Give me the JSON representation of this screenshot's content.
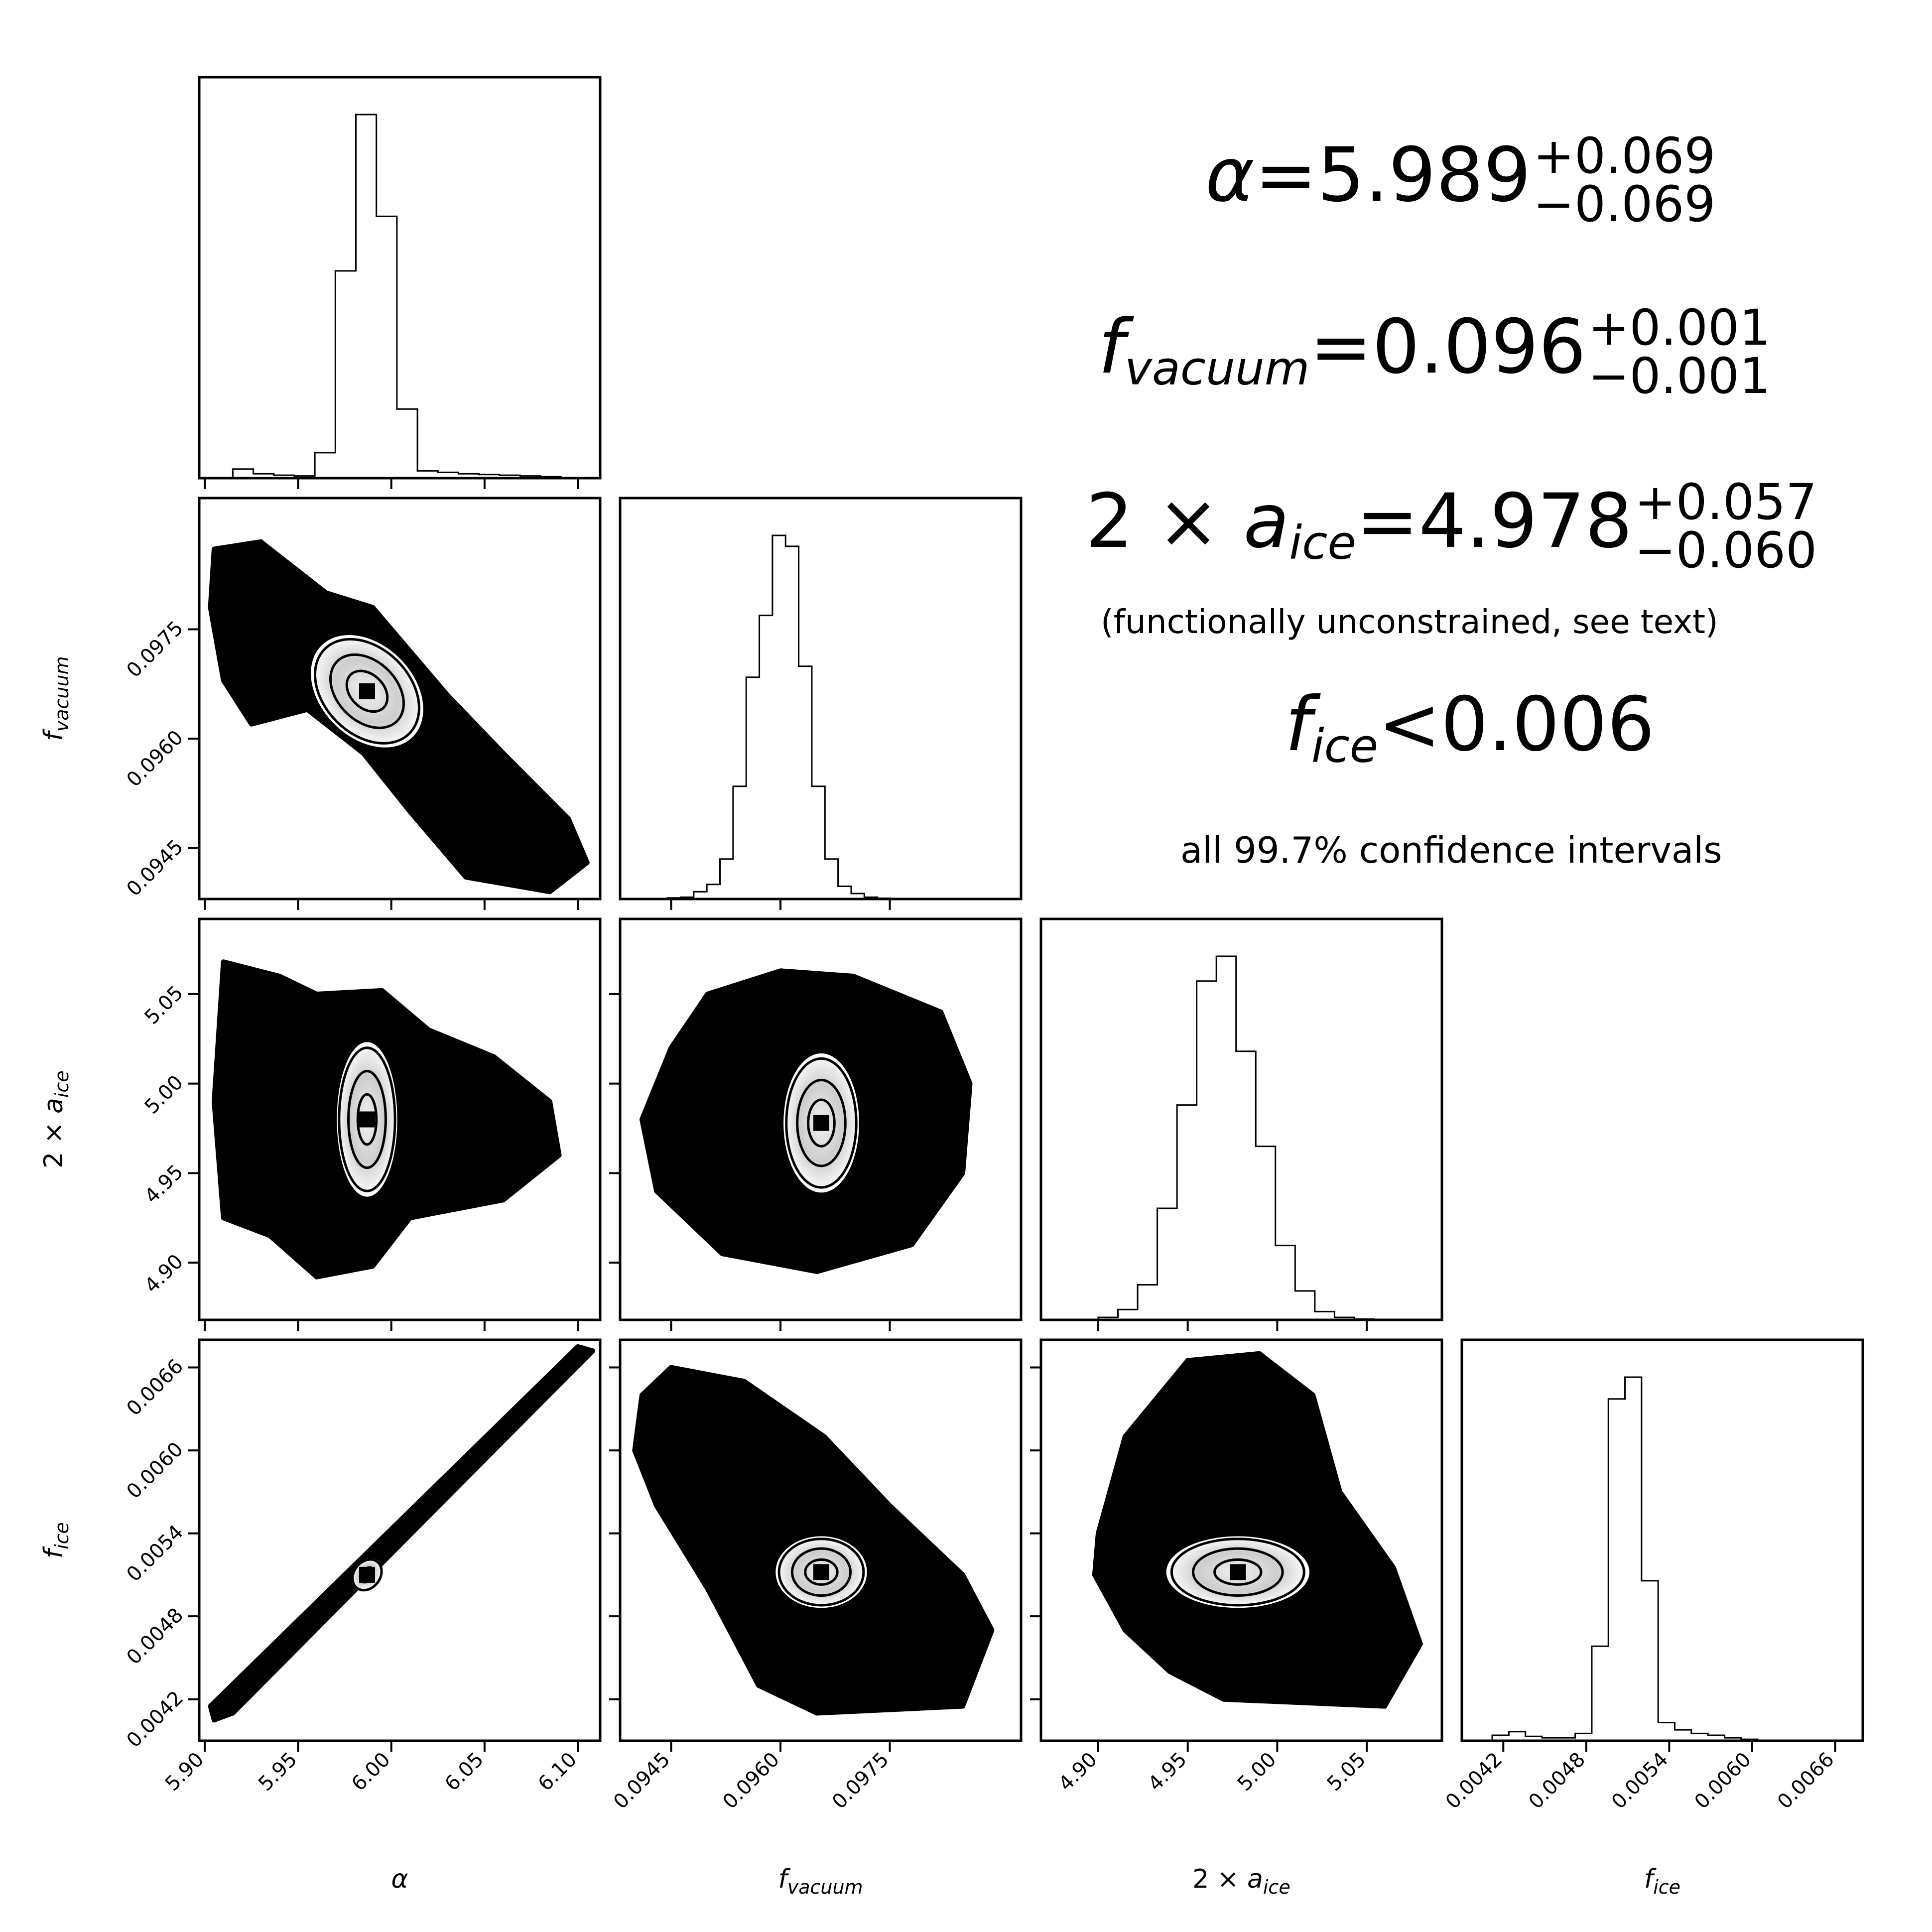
{
  "summary": {
    "alpha": {
      "name": "α",
      "value": "5.989",
      "plus": "+0.069",
      "minus": "−0.069"
    },
    "f_vacuum": {
      "name": "f",
      "sub": "vacuum",
      "value": "0.096",
      "plus": "+0.001",
      "minus": "−0.001"
    },
    "a_ice": {
      "prefix": "2 × ",
      "name": "a",
      "sub": "ice",
      "value": "4.978",
      "plus": "+0.057",
      "minus": "−0.060"
    },
    "a_ice_note": "(functionally unconstrained, see text)",
    "f_ice": {
      "name": "f",
      "sub": "ice",
      "text": "<0.006"
    },
    "footer": "all 99.7% confidence intervals"
  },
  "colors": {
    "ink": "#000000",
    "background": "#ffffff"
  },
  "chart_data": {
    "type": "corner",
    "parameters": [
      {
        "key": "alpha",
        "label": "α",
        "range": [
          5.897,
          6.112
        ],
        "ticks": [
          5.9,
          5.95,
          6.0,
          6.05,
          6.1
        ],
        "tick_labels": [
          "5.90",
          "5.95",
          "6.00",
          "6.05",
          "6.10"
        ]
      },
      {
        "key": "f_vacuum",
        "label": "f",
        "label_sub": "vacuum",
        "range": [
          0.0938,
          0.0993
        ],
        "ticks": [
          0.0945,
          0.096,
          0.0975
        ],
        "tick_labels": [
          "0.0945",
          "0.0960",
          "0.0975"
        ]
      },
      {
        "key": "a_ice",
        "label": "2 × a",
        "label_sub": "ice",
        "range": [
          4.868,
          5.092
        ],
        "ticks": [
          4.9,
          4.95,
          5.0,
          5.05
        ],
        "tick_labels": [
          "4.90",
          "4.95",
          "5.00",
          "5.05"
        ]
      },
      {
        "key": "f_ice",
        "label": "f",
        "label_sub": "ice",
        "range": [
          0.0039,
          0.0068
        ],
        "ticks": [
          0.0042,
          0.0048,
          0.0054,
          0.006,
          0.0066
        ],
        "tick_labels": [
          "0.0042",
          "0.0048",
          "0.0054",
          "0.0060",
          "0.0066"
        ]
      }
    ],
    "histograms": [
      {
        "param": "alpha",
        "edges": [
          5.915,
          5.926,
          5.937,
          5.948,
          5.959,
          5.97,
          5.981,
          5.992,
          6.003,
          6.014,
          6.025,
          6.036,
          6.047,
          6.058,
          6.069,
          6.08,
          6.091
        ],
        "counts": [
          0.025,
          0.012,
          0.008,
          0.006,
          0.07,
          0.57,
          1.0,
          0.72,
          0.19,
          0.02,
          0.016,
          0.012,
          0.01,
          0.008,
          0.006,
          0.004
        ]
      },
      {
        "param": "f_vacuum",
        "edges": [
          0.09445,
          0.09463,
          0.09481,
          0.09499,
          0.09517,
          0.09535,
          0.09553,
          0.09571,
          0.09589,
          0.09607,
          0.09625,
          0.09643,
          0.09661,
          0.09679,
          0.09697,
          0.09715,
          0.09733,
          0.09751,
          0.09769,
          0.09787,
          0.09805
        ],
        "counts": [
          0.003,
          0.005,
          0.02,
          0.04,
          0.11,
          0.31,
          0.61,
          0.78,
          1.0,
          0.97,
          0.64,
          0.31,
          0.11,
          0.035,
          0.015,
          0.005,
          0.002,
          0.001,
          0.001,
          0.001
        ]
      },
      {
        "param": "a_ice",
        "edges": [
          4.9,
          4.911,
          4.922,
          4.933,
          4.944,
          4.955,
          4.966,
          4.977,
          4.988,
          4.999,
          5.01,
          5.021,
          5.032,
          5.043,
          5.054
        ],
        "counts": [
          0.006,
          0.025,
          0.085,
          0.27,
          0.52,
          0.82,
          0.88,
          0.65,
          0.42,
          0.18,
          0.07,
          0.02,
          0.006,
          0.002
        ]
      },
      {
        "param": "f_ice",
        "edges": [
          0.00412,
          0.00424,
          0.00436,
          0.00448,
          0.0046,
          0.00472,
          0.00484,
          0.00496,
          0.00508,
          0.0052,
          0.00532,
          0.00544,
          0.00556,
          0.00568,
          0.0058,
          0.00592,
          0.00604
        ],
        "counts": [
          0.015,
          0.025,
          0.012,
          0.008,
          0.008,
          0.02,
          0.26,
          0.94,
          1.0,
          0.44,
          0.05,
          0.03,
          0.02,
          0.015,
          0.008,
          0.004
        ]
      }
    ],
    "pair_clouds": [
      {
        "x": "alpha",
        "y": "f_vacuum",
        "outline": [
          [
            5.905,
            0.0986
          ],
          [
            5.93,
            0.0987
          ],
          [
            5.965,
            0.098
          ],
          [
            5.99,
            0.0978
          ],
          [
            6.01,
            0.0972
          ],
          [
            6.03,
            0.0966
          ],
          [
            6.06,
            0.0958
          ],
          [
            6.095,
            0.0949
          ],
          [
            6.105,
            0.0943
          ],
          [
            6.085,
            0.0939
          ],
          [
            6.04,
            0.0941
          ],
          [
            6.01,
            0.095
          ],
          [
            5.985,
            0.0958
          ],
          [
            5.955,
            0.0964
          ],
          [
            5.925,
            0.0962
          ],
          [
            5.91,
            0.0968
          ],
          [
            5.903,
            0.0978
          ]
        ],
        "centre": [
          5.987,
          0.09665
        ],
        "contours": [
          [
            0.009,
            0.00032,
            -45
          ],
          [
            0.016,
            0.00058,
            -45
          ],
          [
            0.023,
            0.00082,
            -45
          ]
        ]
      },
      {
        "x": "alpha",
        "y": "a_ice",
        "outline": [
          [
            5.91,
            5.068
          ],
          [
            5.94,
            5.06
          ],
          [
            5.96,
            5.05
          ],
          [
            5.995,
            5.052
          ],
          [
            6.02,
            5.03
          ],
          [
            6.055,
            5.015
          ],
          [
            6.085,
            4.99
          ],
          [
            6.09,
            4.96
          ],
          [
            6.06,
            4.935
          ],
          [
            6.01,
            4.925
          ],
          [
            5.99,
            4.898
          ],
          [
            5.96,
            4.892
          ],
          [
            5.935,
            4.915
          ],
          [
            5.91,
            4.925
          ],
          [
            5.905,
            4.99
          ]
        ],
        "centre": [
          5.987,
          4.98
        ],
        "contours": [
          [
            0.005,
            0.014,
            0
          ],
          [
            0.01,
            0.027,
            0
          ],
          [
            0.015,
            0.04,
            0
          ]
        ]
      },
      {
        "x": "f_vacuum",
        "y": "a_ice",
        "outline": [
          [
            0.0945,
            5.02
          ],
          [
            0.095,
            5.05
          ],
          [
            0.096,
            5.063
          ],
          [
            0.097,
            5.06
          ],
          [
            0.0982,
            5.04
          ],
          [
            0.0986,
            5.0
          ],
          [
            0.0985,
            4.95
          ],
          [
            0.0978,
            4.91
          ],
          [
            0.0965,
            4.895
          ],
          [
            0.0952,
            4.905
          ],
          [
            0.0943,
            4.94
          ],
          [
            0.0941,
            4.98
          ]
        ],
        "centre": [
          0.09656,
          4.978
        ],
        "contours": [
          [
            0.00018,
            0.013,
            0
          ],
          [
            0.00033,
            0.024,
            0
          ],
          [
            0.00048,
            0.036,
            0
          ]
        ]
      },
      {
        "x": "alpha",
        "y": "f_ice",
        "outline": [
          [
            5.905,
            0.00405
          ],
          [
            5.915,
            0.0041
          ],
          [
            6.108,
            0.00672
          ],
          [
            6.1,
            0.00675
          ],
          [
            5.903,
            0.00415
          ]
        ],
        "centre": [
          5.987,
          0.0051
        ],
        "contours": [
          [
            0.003,
            6e-05,
            38
          ],
          [
            0.007,
            0.00012,
            38
          ]
        ]
      },
      {
        "x": "f_vacuum",
        "y": "f_ice",
        "outline": [
          [
            0.0941,
            0.0064
          ],
          [
            0.0945,
            0.0066
          ],
          [
            0.0955,
            0.0065
          ],
          [
            0.0966,
            0.0061
          ],
          [
            0.0975,
            0.0056
          ],
          [
            0.0985,
            0.0051
          ],
          [
            0.0989,
            0.0047
          ],
          [
            0.0985,
            0.00415
          ],
          [
            0.0965,
            0.0041
          ],
          [
            0.0957,
            0.0043
          ],
          [
            0.095,
            0.005
          ],
          [
            0.0943,
            0.0056
          ],
          [
            0.094,
            0.006
          ]
        ],
        "centre": [
          0.09656,
          0.00512
        ],
        "contours": [
          [
            0.00022,
            9e-05,
            0
          ],
          [
            0.0004,
            0.00017,
            0
          ],
          [
            0.00058,
            0.00024,
            0
          ]
        ]
      },
      {
        "x": "a_ice",
        "y": "f_ice",
        "outline": [
          [
            4.9,
            0.0054
          ],
          [
            4.915,
            0.0061
          ],
          [
            4.95,
            0.00665
          ],
          [
            4.99,
            0.0067
          ],
          [
            5.02,
            0.0064
          ],
          [
            5.035,
            0.0057
          ],
          [
            5.065,
            0.00515
          ],
          [
            5.08,
            0.0046
          ],
          [
            5.06,
            0.00415
          ],
          [
            4.97,
            0.0042
          ],
          [
            4.94,
            0.0044
          ],
          [
            4.915,
            0.0047
          ],
          [
            4.898,
            0.0051
          ]
        ],
        "centre": [
          4.978,
          0.00512
        ],
        "contours": [
          [
            0.013,
            9e-05,
            0
          ],
          [
            0.025,
            0.00017,
            0
          ],
          [
            0.037,
            0.00024,
            0
          ]
        ]
      }
    ]
  }
}
